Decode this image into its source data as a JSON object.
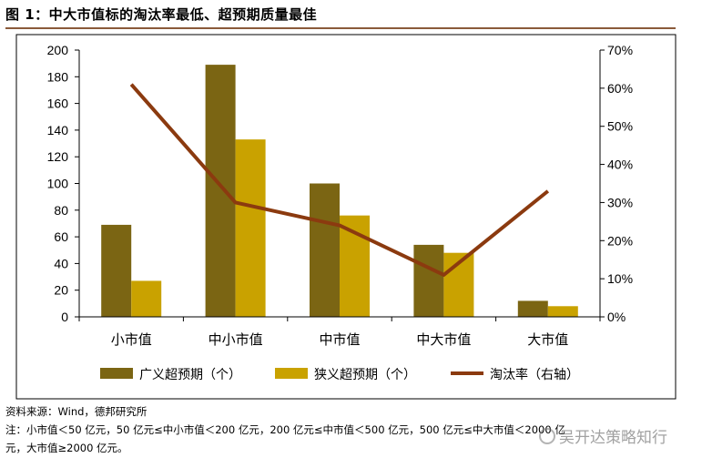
{
  "figure_title": "图 1：中大市值标的淘汰率最低、超预期质量最佳",
  "source": "资料来源：Wind，德邦研究所",
  "note_line1": "注：小市值＜50 亿元，50 亿元≤中小市值＜200 亿元，200 亿元≤中市值＜500 亿元，500 亿元≤中大市值＜2000 亿",
  "note_line2": "元，大市值≥2000 亿元。",
  "watermark": "吴开达策略知行",
  "colors": {
    "broad": "#7b6513",
    "narrow": "#c9a200",
    "line": "#8b3a0f",
    "border": "#000000",
    "rule": "#8a5a3a"
  },
  "chart_data": {
    "type": "bar",
    "categories": [
      "小市值",
      "中小市值",
      "中市值",
      "中大市值",
      "大市值"
    ],
    "series": [
      {
        "name": "广义超预期（个）",
        "type": "bar",
        "axis": "left",
        "values": [
          69,
          189,
          100,
          54,
          12
        ]
      },
      {
        "name": "狭义超预期（个）",
        "type": "bar",
        "axis": "left",
        "values": [
          27,
          133,
          76,
          48,
          8
        ]
      },
      {
        "name": "淘汰率（右轴）",
        "type": "line",
        "axis": "right",
        "values": [
          0.61,
          0.3,
          0.24,
          0.11,
          0.33
        ]
      }
    ],
    "ylim": [
      0,
      200
    ],
    "yticks": [
      0,
      20,
      40,
      60,
      80,
      100,
      120,
      140,
      160,
      180,
      200
    ],
    "y2lim": [
      0,
      0.7
    ],
    "y2ticks": [
      "0%",
      "10%",
      "20%",
      "30%",
      "40%",
      "50%",
      "60%",
      "70%"
    ],
    "legend_position": "bottom",
    "grid": false
  }
}
